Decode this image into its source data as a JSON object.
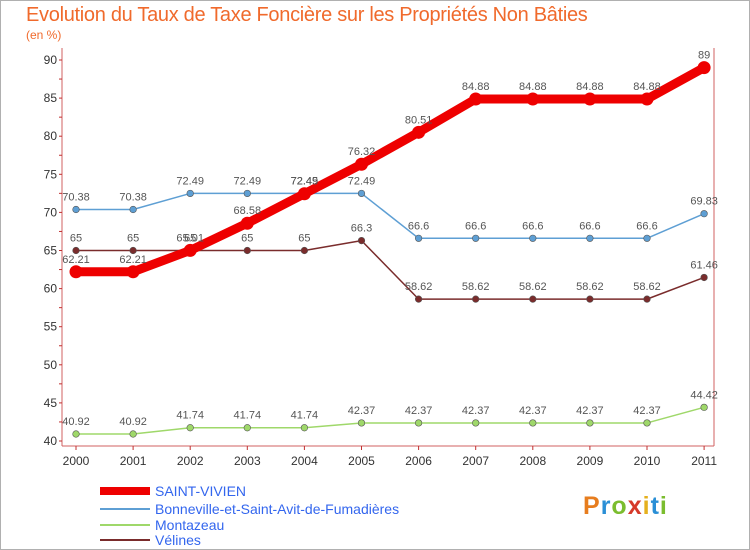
{
  "title": "Evolution du Taux de Taxe Foncière sur les Propriétés Non Bâties",
  "unit_label": "(en %)",
  "logo": [
    "P",
    "r",
    "o",
    "x",
    "i",
    "t",
    "i"
  ],
  "chart_data": {
    "type": "line",
    "categories": [
      "2000",
      "2001",
      "2002",
      "2003",
      "2004",
      "2005",
      "2006",
      "2007",
      "2008",
      "2009",
      "2010",
      "2011"
    ],
    "ylim": [
      40,
      90
    ],
    "yticks": [
      40,
      45,
      50,
      55,
      60,
      65,
      70,
      75,
      80,
      85,
      90
    ],
    "grid": false,
    "legend_position": "bottom-left",
    "series": [
      {
        "name": "SAINT-VIVIEN",
        "color": "#ee0000",
        "values": [
          62.21,
          62.21,
          65.01,
          68.58,
          72.45,
          76.32,
          80.51,
          84.88,
          84.88,
          84.88,
          84.88,
          89
        ],
        "labels": [
          "62.21",
          "62.21",
          "65.01",
          "68.58",
          "72.45",
          "76.32",
          "80.51",
          "84.88",
          "84.88",
          "84.88",
          "84.88",
          "89"
        ]
      },
      {
        "name": "Bonneville-et-Saint-Avit-de-Fumadières",
        "color": "#5e9fd4",
        "values": [
          70.38,
          70.38,
          72.49,
          72.49,
          72.49,
          72.49,
          66.6,
          66.6,
          66.6,
          66.6,
          66.6,
          69.83
        ],
        "labels": [
          "70.38",
          "70.38",
          "72.49",
          "72.49",
          "72.49",
          "72.49",
          "66.6",
          "66.6",
          "66.6",
          "66.6",
          "66.6",
          "69.83"
        ]
      },
      {
        "name": "Montazeau",
        "color": "#9fd86a",
        "values": [
          40.92,
          40.92,
          41.74,
          41.74,
          41.74,
          42.37,
          42.37,
          42.37,
          42.37,
          42.37,
          42.37,
          44.42
        ],
        "labels": [
          "40.92",
          "40.92",
          "41.74",
          "41.74",
          "41.74",
          "42.37",
          "42.37",
          "42.37",
          "42.37",
          "42.37",
          "42.37",
          "44.42"
        ]
      },
      {
        "name": "Vélines",
        "color": "#7a2c2c",
        "values": [
          65,
          65,
          65,
          65,
          65,
          66.3,
          58.62,
          58.62,
          58.62,
          58.62,
          58.62,
          61.46
        ],
        "labels": [
          "65",
          "65",
          "65",
          "65",
          "65",
          "66.3",
          "58.62",
          "58.62",
          "58.62",
          "58.62",
          "58.62",
          "61.46"
        ]
      }
    ]
  }
}
